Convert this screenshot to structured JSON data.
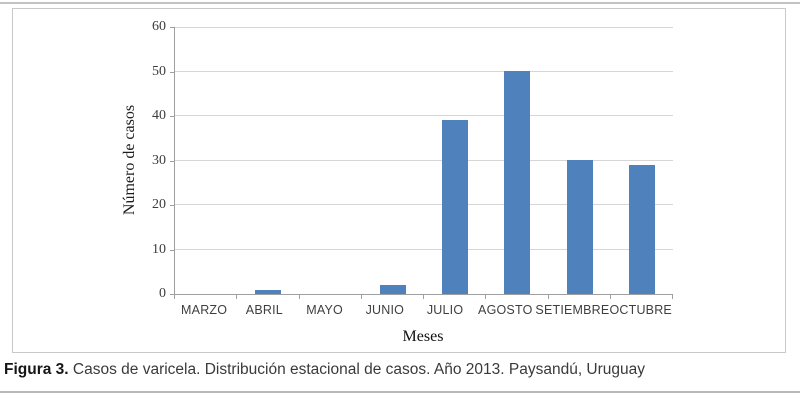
{
  "figure": {
    "caption_label": "Figura 3.",
    "caption_text": " Casos de varicela. Distribución estacional de casos. Año 2013. Paysandú, Uruguay"
  },
  "chart_data": {
    "type": "bar",
    "categories": [
      "MARZO",
      "ABRIL",
      "MAYO",
      "JUNIO",
      "JULIO",
      "AGOSTO",
      "SETIEMBRE",
      "OCTUBRE"
    ],
    "values": [
      0,
      1,
      0,
      2,
      39,
      50,
      30,
      29
    ],
    "xlabel": "Meses",
    "ylabel": "Número de casos",
    "ylim": [
      0,
      60
    ],
    "yticks": [
      0,
      10,
      20,
      30,
      40,
      50,
      60
    ],
    "grid": "horizontal",
    "legend": "none",
    "bar_color": "#4f81bd",
    "gridline_color": "#d6d6d6",
    "axis_color": "#9f9f9f"
  }
}
